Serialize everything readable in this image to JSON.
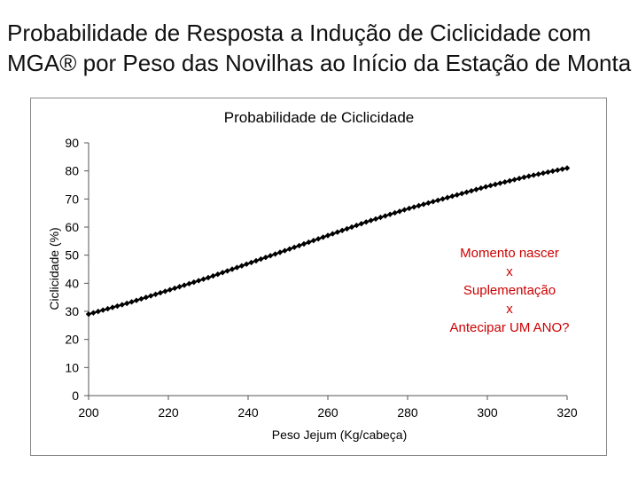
{
  "slide": {
    "title_line1": "Probabilidade de Resposta a Indução de Ciclicidade com",
    "title_line2": "MGA® por Peso das Novilhas ao Início da Estação de Monta"
  },
  "chart_data": {
    "type": "line",
    "title": "Probabilidade de Ciclicidade",
    "xlabel": "Peso Jejum (Kg/cabeça)",
    "ylabel": "Ciclicidade (%)",
    "xlim": [
      200,
      320
    ],
    "ylim": [
      0,
      90
    ],
    "x_ticks": [
      "200",
      "220",
      "240",
      "260",
      "280",
      "300",
      "320"
    ],
    "y_ticks": [
      "0",
      "10",
      "20",
      "30",
      "40",
      "50",
      "60",
      "70",
      "80",
      "90"
    ],
    "grid": false,
    "legend": "none",
    "line_color": "#000000",
    "series": [
      {
        "x": [
          200,
          210,
          220,
          230,
          240,
          250,
          260,
          270,
          280,
          290,
          300,
          310,
          320
        ],
        "y": [
          29,
          33,
          37.5,
          42,
          47,
          52,
          57,
          62,
          66.5,
          70.5,
          74.5,
          78,
          81
        ]
      }
    ],
    "annotation": {
      "lines": [
        "Momento nascer",
        "x",
        "Suplementação",
        "x",
        "Antecipar UM ANO?"
      ],
      "color": "#cc0000"
    }
  }
}
